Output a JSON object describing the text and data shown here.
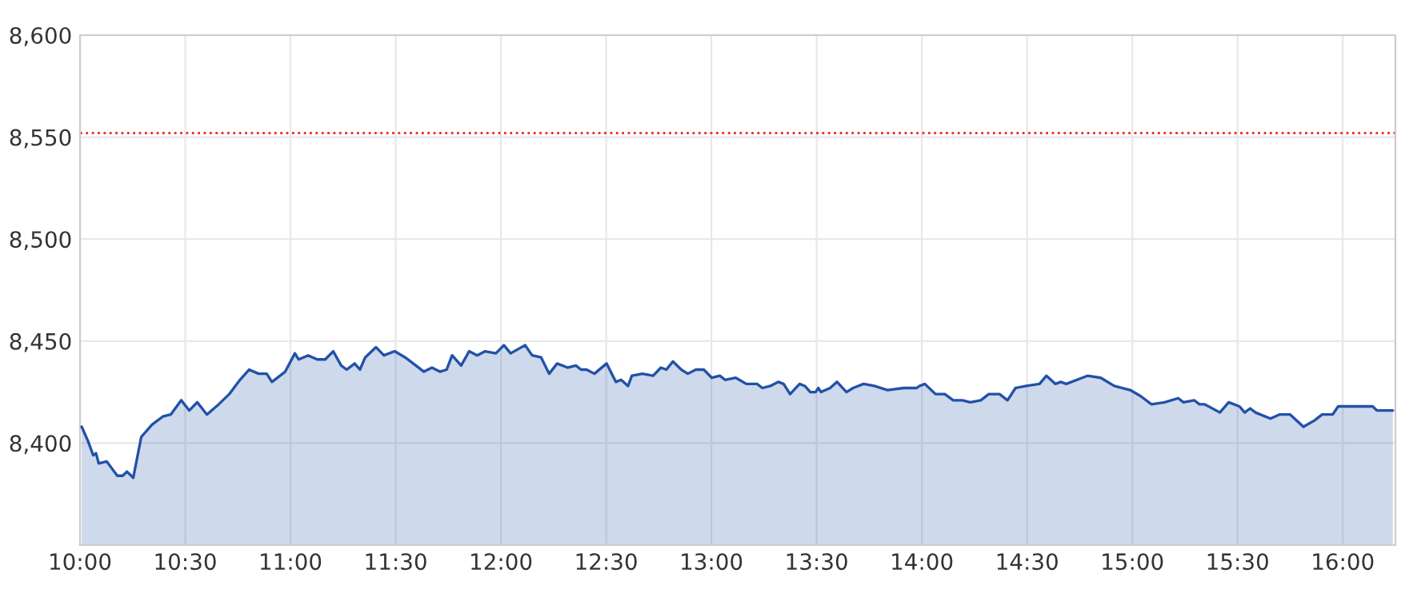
{
  "chart_data": {
    "type": "area",
    "x": [
      10.008,
      10.038,
      10.063,
      10.076,
      10.089,
      10.127,
      10.177,
      10.203,
      10.223,
      10.253,
      10.291,
      10.342,
      10.393,
      10.431,
      10.481,
      10.519,
      10.557,
      10.603,
      10.659,
      10.709,
      10.76,
      10.803,
      10.849,
      10.887,
      10.912,
      10.975,
      11.021,
      11.039,
      11.084,
      11.127,
      11.165,
      11.203,
      11.241,
      11.267,
      11.305,
      11.33,
      11.355,
      11.406,
      11.444,
      11.495,
      11.545,
      11.596,
      11.634,
      11.672,
      11.71,
      11.742,
      11.768,
      11.811,
      11.849,
      11.887,
      11.925,
      11.976,
      12.014,
      12.046,
      12.115,
      12.148,
      12.191,
      12.229,
      12.267,
      12.318,
      12.356,
      12.381,
      12.407,
      12.444,
      12.502,
      12.546,
      12.571,
      12.604,
      12.622,
      12.672,
      12.723,
      12.76,
      12.786,
      12.817,
      12.857,
      12.888,
      12.926,
      12.964,
      13.002,
      13.04,
      13.065,
      13.116,
      13.166,
      13.217,
      13.242,
      13.28,
      13.318,
      13.343,
      13.374,
      13.419,
      13.444,
      13.47,
      13.495,
      13.508,
      13.521,
      13.564,
      13.597,
      13.642,
      13.673,
      13.723,
      13.774,
      13.837,
      13.913,
      13.976,
      13.989,
      14.014,
      14.065,
      14.109,
      14.149,
      14.192,
      14.23,
      14.28,
      14.318,
      14.369,
      14.407,
      14.445,
      14.496,
      14.559,
      14.592,
      14.635,
      14.66,
      14.686,
      14.762,
      14.787,
      14.85,
      14.914,
      14.99,
      15.04,
      15.091,
      15.154,
      15.218,
      15.243,
      15.294,
      15.319,
      15.344,
      15.416,
      15.458,
      15.509,
      15.534,
      15.56,
      15.585,
      15.656,
      15.699,
      15.75,
      15.813,
      15.864,
      15.902,
      15.952,
      15.978,
      16.142,
      16.162,
      16.238
    ],
    "series": [
      {
        "color": "#2251a8",
        "values": [
          8408,
          8401,
          8394,
          8395,
          8390,
          8391,
          8384,
          8384,
          8386,
          8383,
          8403,
          8409,
          8413,
          8414,
          8421,
          8416,
          8420,
          8414,
          8419,
          8424,
          8431,
          8436,
          8434,
          8434,
          8430,
          8435,
          8444,
          8441,
          8443,
          8441,
          8441,
          8445,
          8438,
          8436,
          8439,
          8436,
          8442,
          8447,
          8443,
          8445,
          8442,
          8438,
          8435,
          8437,
          8435,
          8436,
          8443,
          8438,
          8445,
          8443,
          8445,
          8444,
          8448,
          8444,
          8448,
          8443,
          8442,
          8434,
          8439,
          8437,
          8438,
          8436,
          8436,
          8434,
          8439,
          8430,
          8431,
          8428,
          8433,
          8434,
          8433,
          8437,
          8436,
          8440,
          8436,
          8434,
          8436,
          8436,
          8432,
          8433,
          8431,
          8432,
          8429,
          8429,
          8427,
          8428,
          8430,
          8429,
          8424,
          8429,
          8428,
          8425,
          8425,
          8427,
          8425,
          8427,
          8430,
          8425,
          8427,
          8429,
          8428,
          8426,
          8427,
          8427,
          8428,
          8429,
          8424,
          8424,
          8421,
          8421,
          8420,
          8421,
          8424,
          8424,
          8421,
          8427,
          8428,
          8429,
          8433,
          8429,
          8430,
          8429,
          8432,
          8433,
          8432,
          8428,
          8426,
          8423,
          8419,
          8420,
          8422,
          8420,
          8421,
          8419,
          8419,
          8415,
          8420,
          8418,
          8415,
          8417,
          8415,
          8412,
          8414,
          8414,
          8408,
          8411,
          8414,
          8414,
          8418,
          8418,
          8416,
          8416
        ]
      }
    ],
    "xlim": [
      10,
      16.25
    ],
    "xticks": [
      {
        "value": 10,
        "label": "10:00"
      },
      {
        "value": 10.5,
        "label": "10:30"
      },
      {
        "value": 11,
        "label": "11:00"
      },
      {
        "value": 11.5,
        "label": "11:30"
      },
      {
        "value": 12,
        "label": "12:00"
      },
      {
        "value": 12.5,
        "label": "12:30"
      },
      {
        "value": 13,
        "label": "13:00"
      },
      {
        "value": 13.5,
        "label": "13:30"
      },
      {
        "value": 14,
        "label": "14:00"
      },
      {
        "value": 14.5,
        "label": "14:30"
      },
      {
        "value": 15,
        "label": "15:00"
      },
      {
        "value": 15.5,
        "label": "15:30"
      },
      {
        "value": 16,
        "label": "16:00"
      }
    ],
    "ylim": [
      8350,
      8600
    ],
    "yticks": [
      {
        "value": 8400,
        "label": "8,400"
      },
      {
        "value": 8450,
        "label": "8,450"
      },
      {
        "value": 8500,
        "label": "8,500"
      },
      {
        "value": 8550,
        "label": "8,550"
      },
      {
        "value": 8600,
        "label": "8,600"
      }
    ],
    "ref_lines": [
      {
        "axis": "y",
        "value": 8552,
        "color": "#f03030",
        "line_style": "dotted"
      }
    ],
    "grid": true
  }
}
